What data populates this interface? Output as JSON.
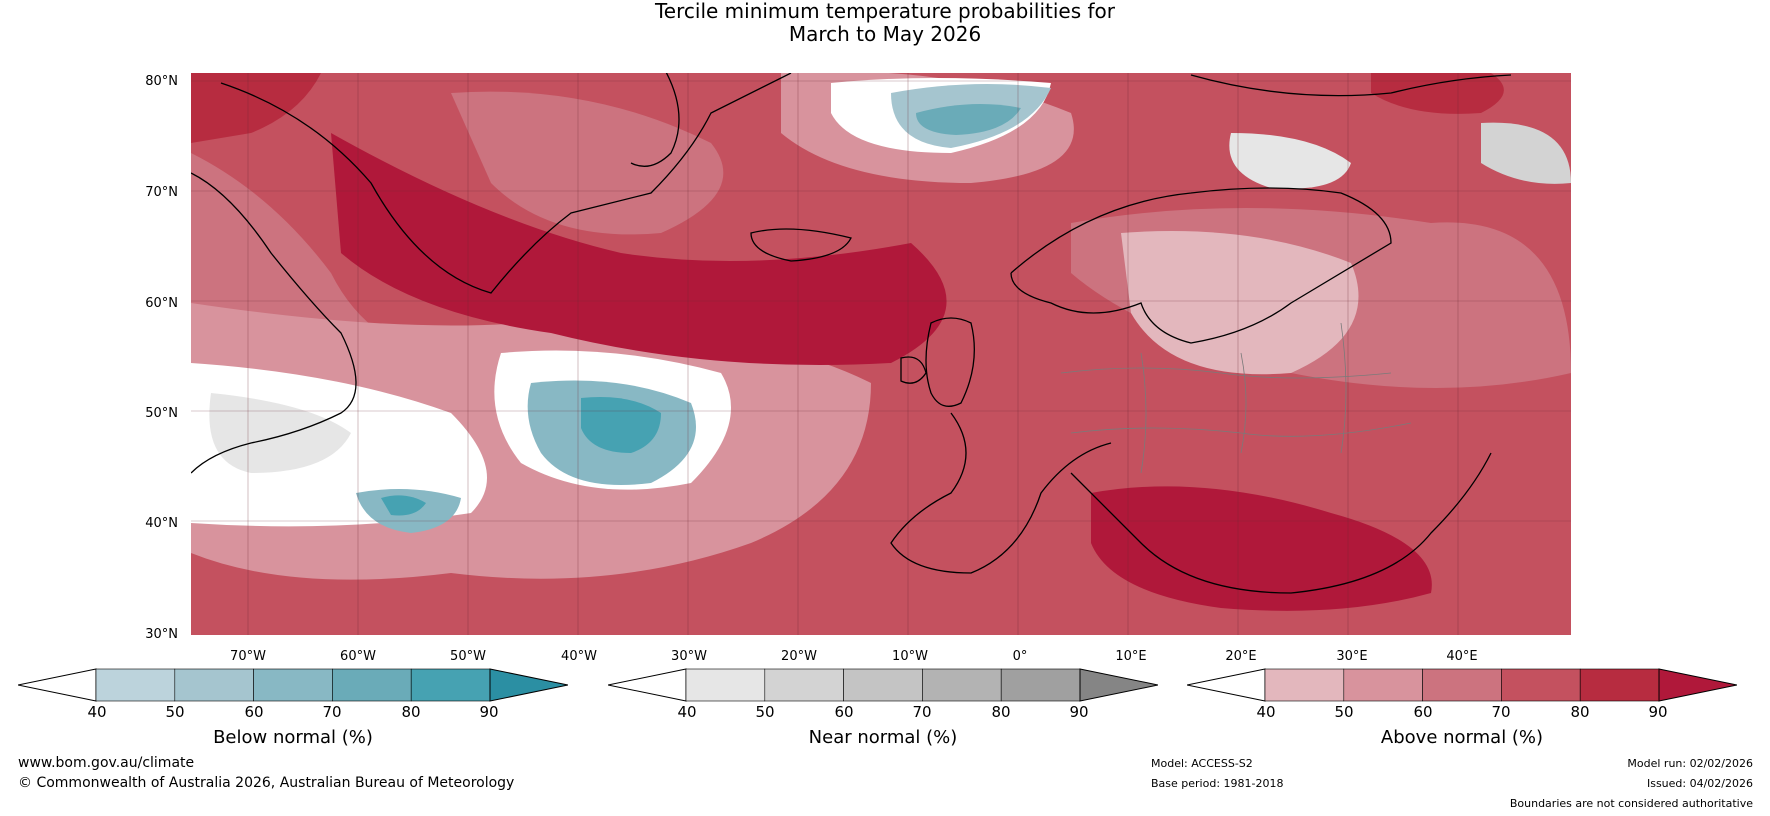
{
  "title": {
    "line1": "Tercile minimum temperature probabilities for",
    "line2": "March to May 2026"
  },
  "map": {
    "lat_labels": [
      "80°N",
      "70°N",
      "60°N",
      "50°N",
      "40°N",
      "30°N"
    ],
    "lon_labels": [
      "70°W",
      "60°W",
      "50°W",
      "40°W",
      "30°W",
      "20°W",
      "10°W",
      "0°",
      "10°E",
      "20°E",
      "30°E",
      "40°E"
    ]
  },
  "colorbars": [
    {
      "label": "Below normal (%)",
      "ticks": [
        "40",
        "50",
        "60",
        "70",
        "80",
        "90"
      ],
      "colors": [
        "#ffffff",
        "#bcd3dc",
        "#a5c5cf",
        "#88b8c4",
        "#6aabb8",
        "#46a2b2",
        "#2b8fa3"
      ]
    },
    {
      "label": "Near normal (%)",
      "ticks": [
        "40",
        "50",
        "60",
        "70",
        "80",
        "90"
      ],
      "colors": [
        "#ffffff",
        "#e6e6e6",
        "#d3d3d3",
        "#c4c4c4",
        "#b3b3b3",
        "#a0a0a0",
        "#858585"
      ]
    },
    {
      "label": "Above normal (%)",
      "ticks": [
        "40",
        "50",
        "60",
        "70",
        "80",
        "90"
      ],
      "colors": [
        "#ffffff",
        "#e3b7bd",
        "#d8939d",
        "#cc737f",
        "#c4515f",
        "#b72c40",
        "#b0183a"
      ]
    }
  ],
  "footer": {
    "website": "www.bom.gov.au/climate",
    "copyright": "© Commonwealth of Australia 2026, Australian Bureau of Meteorology",
    "model": "Model: ACCESS-S2",
    "base_period": "Base period: 1981-2018",
    "model_run": "Model run: 02/02/2026",
    "issued": "Issued: 04/02/2026",
    "disclaimer": "Boundaries are not considered authoritative"
  }
}
